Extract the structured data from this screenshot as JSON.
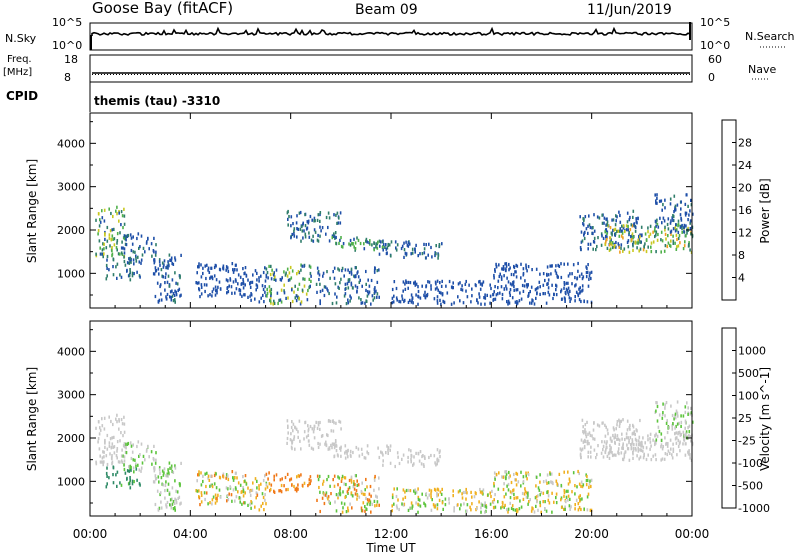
{
  "header": {
    "site": "Goose Bay (fitACF)",
    "beam": "Beam 09",
    "date": "11/Jun/2019"
  },
  "status_panels": {
    "nsky": {
      "label": "N.Sky",
      "scale_top": "10^5",
      "scale_bottom": "10^0"
    },
    "nsearch": {
      "label": "N.Search",
      "scale_top": "10^5",
      "scale_bottom": "10^0"
    },
    "freq": {
      "label_line1": "Freq.",
      "label_line2": "[MHz]",
      "tick_top": "18",
      "tick_bottom": "8"
    },
    "nave": {
      "label": "Nave",
      "tick_top": "60",
      "tick_bottom": "0"
    },
    "cpid": {
      "label": "CPID",
      "value": "themis (tau) -3310"
    }
  },
  "chart_data": [
    {
      "type": "heatmap",
      "name": "power",
      "ylabel": "Slant Range [km]",
      "yticks": [
        1000,
        2000,
        3000,
        4000
      ],
      "ylim": [
        200,
        4700
      ],
      "xlim_hours": [
        0,
        24
      ],
      "colorbar": {
        "label": "Power [dB]",
        "ticks": [
          "4",
          "8",
          "12",
          "16",
          "20",
          "24",
          "28"
        ],
        "colors": [
          "#0a14e6",
          "#1e4fa8",
          "#2f7d6a",
          "#4fb04a",
          "#c8c820",
          "#f0a020",
          "#f06018",
          "#e81010"
        ],
        "range": [
          0,
          32
        ]
      },
      "regions": [
        {
          "t": [
            0.2,
            1.4
          ],
          "r": [
            1300,
            2500
          ],
          "v": [
            6,
            18
          ]
        },
        {
          "t": [
            0.6,
            2.0
          ],
          "r": [
            800,
            1300
          ],
          "v": [
            4,
            12
          ]
        },
        {
          "t": [
            1.2,
            2.6
          ],
          "r": [
            1200,
            1900
          ],
          "v": [
            4,
            10
          ]
        },
        {
          "t": [
            2.5,
            3.6
          ],
          "r": [
            300,
            1400
          ],
          "v": [
            4,
            9
          ]
        },
        {
          "t": [
            4.2,
            5.8
          ],
          "r": [
            400,
            1200
          ],
          "v": [
            4,
            8
          ]
        },
        {
          "t": [
            5.8,
            7.0
          ],
          "r": [
            300,
            1100
          ],
          "v": [
            4,
            8
          ]
        },
        {
          "t": [
            7.0,
            8.8
          ],
          "r": [
            250,
            1200
          ],
          "v": [
            4,
            20
          ]
        },
        {
          "t": [
            7.8,
            10.0
          ],
          "r": [
            1700,
            2400
          ],
          "v": [
            4,
            12
          ]
        },
        {
          "t": [
            9.5,
            12.0
          ],
          "r": [
            1500,
            1800
          ],
          "v": [
            6,
            14
          ]
        },
        {
          "t": [
            9.0,
            11.5
          ],
          "r": [
            250,
            1100
          ],
          "v": [
            4,
            10
          ]
        },
        {
          "t": [
            11.5,
            14.0
          ],
          "r": [
            1300,
            1700
          ],
          "v": [
            4,
            10
          ]
        },
        {
          "t": [
            12.0,
            16.0
          ],
          "r": [
            250,
            800
          ],
          "v": [
            4,
            8
          ]
        },
        {
          "t": [
            16.0,
            20.0
          ],
          "r": [
            250,
            1200
          ],
          "v": [
            4,
            8
          ]
        },
        {
          "t": [
            19.5,
            22.0
          ],
          "r": [
            1500,
            2400
          ],
          "v": [
            4,
            10
          ]
        },
        {
          "t": [
            20.5,
            24.0
          ],
          "r": [
            1450,
            2100
          ],
          "v": [
            8,
            22
          ]
        },
        {
          "t": [
            22.5,
            24.0
          ],
          "r": [
            1900,
            2800
          ],
          "v": [
            4,
            10
          ]
        }
      ]
    },
    {
      "type": "heatmap",
      "name": "velocity",
      "ylabel": "Slant Range [km]",
      "xlabel": "Time UT",
      "xticks": [
        "00:00",
        "04:00",
        "08:00",
        "12:00",
        "16:00",
        "20:00",
        "00:00"
      ],
      "yticks": [
        1000,
        2000,
        3000,
        4000
      ],
      "ylim": [
        200,
        4700
      ],
      "xlim_hours": [
        0,
        24
      ],
      "colorbar": {
        "label": "Velocity [m s^-1]",
        "ticks": [
          "1000",
          "500",
          "100",
          "25",
          "-25",
          "-100",
          "-500",
          "-1000"
        ],
        "colors": [
          "#1a2fc8",
          "#1e5aa0",
          "#2e8a66",
          "#5cc43c",
          "#c8c8c8",
          "#f0b020",
          "#f07818",
          "#e81810"
        ],
        "range": [
          -1200,
          1200
        ]
      },
      "regions": [
        {
          "t": [
            0.2,
            1.4
          ],
          "r": [
            1300,
            2500
          ],
          "v": [
            -25,
            25
          ]
        },
        {
          "t": [
            0.6,
            2.0
          ],
          "r": [
            800,
            1300
          ],
          "v": [
            25,
            300
          ]
        },
        {
          "t": [
            1.2,
            2.6
          ],
          "r": [
            1200,
            1900
          ],
          "v": [
            -25,
            60
          ]
        },
        {
          "t": [
            2.5,
            3.6
          ],
          "r": [
            300,
            1400
          ],
          "v": [
            -20,
            60
          ]
        },
        {
          "t": [
            4.2,
            5.8
          ],
          "r": [
            400,
            1200
          ],
          "v": [
            -150,
            80
          ]
        },
        {
          "t": [
            5.8,
            7.0
          ],
          "r": [
            300,
            1100
          ],
          "v": [
            -120,
            80
          ]
        },
        {
          "t": [
            7.0,
            8.8
          ],
          "r": [
            700,
            1200
          ],
          "v": [
            -200,
            -50
          ]
        },
        {
          "t": [
            7.8,
            10.0
          ],
          "r": [
            1700,
            2400
          ],
          "v": [
            -25,
            25
          ]
        },
        {
          "t": [
            9.5,
            12.0
          ],
          "r": [
            1500,
            1800
          ],
          "v": [
            -25,
            25
          ]
        },
        {
          "t": [
            9.0,
            11.5
          ],
          "r": [
            250,
            1100
          ],
          "v": [
            -150,
            80
          ]
        },
        {
          "t": [
            11.5,
            14.0
          ],
          "r": [
            1300,
            1700
          ],
          "v": [
            -25,
            25
          ]
        },
        {
          "t": [
            12.0,
            16.0
          ],
          "r": [
            250,
            800
          ],
          "v": [
            -100,
            80
          ]
        },
        {
          "t": [
            16.0,
            20.0
          ],
          "r": [
            250,
            1200
          ],
          "v": [
            -100,
            80
          ]
        },
        {
          "t": [
            19.5,
            22.0
          ],
          "r": [
            1500,
            2400
          ],
          "v": [
            -25,
            25
          ]
        },
        {
          "t": [
            20.5,
            24.0
          ],
          "r": [
            1450,
            2100
          ],
          "v": [
            -25,
            25
          ]
        },
        {
          "t": [
            22.5,
            24.0
          ],
          "r": [
            1900,
            2800
          ],
          "v": [
            -25,
            60
          ]
        }
      ]
    }
  ]
}
